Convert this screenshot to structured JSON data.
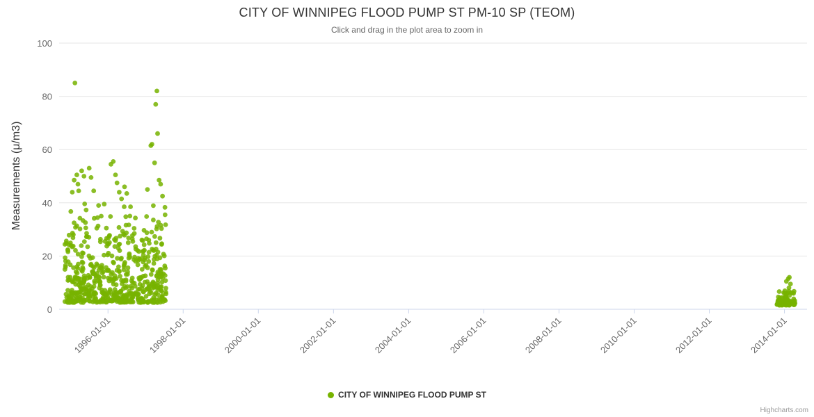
{
  "page": {
    "credits": "Highcharts.com"
  },
  "chart_data": {
    "type": "scatter",
    "title": "CITY OF WINNIPEG FLOOD PUMP ST PM-10 SP (TEOM)",
    "subtitle": "Click and drag in the plot area to zoom in",
    "xlabel": "",
    "ylabel": "Measurements (μ/m3)",
    "ylim": [
      0,
      100
    ],
    "y_ticks": [
      0,
      20,
      40,
      60,
      80,
      100
    ],
    "x_tick_years": [
      1996,
      1998,
      2000,
      2002,
      2004,
      2006,
      2008,
      2010,
      2012,
      2014
    ],
    "x_tick_labels": [
      "1996-01-01",
      "1998-01-01",
      "2000-01-01",
      "2002-01-01",
      "2004-01-01",
      "2006-01-01",
      "2008-01-01",
      "2010-01-01",
      "2012-01-01",
      "2014-01-01"
    ],
    "xlim_years": [
      1994.7,
      2014.6
    ],
    "grid": "horizontal",
    "legend_position": "bottom-center",
    "colors": {
      "accent_green": "#77b300",
      "grid_line": "#e6e6e6",
      "axis_line": "#ccd6eb",
      "tick_text": "#666666"
    },
    "series": [
      {
        "name": "CITY OF WINNIPEG FLOOD PUMP ST",
        "color": "#77b300",
        "outlier_points": [
          [
            1995.12,
            85
          ],
          [
            1995.05,
            44
          ],
          [
            1995.1,
            48.5
          ],
          [
            1995.17,
            50.5
          ],
          [
            1995.2,
            47
          ],
          [
            1995.22,
            44.5
          ],
          [
            1995.3,
            52
          ],
          [
            1995.36,
            50
          ],
          [
            1995.5,
            53
          ],
          [
            1995.55,
            49.5
          ],
          [
            1995.62,
            44.5
          ],
          [
            1995.75,
            39
          ],
          [
            1995.9,
            39.5
          ],
          [
            1996.08,
            54.5
          ],
          [
            1996.14,
            55.5
          ],
          [
            1996.2,
            50.5
          ],
          [
            1996.24,
            47.5
          ],
          [
            1996.3,
            44
          ],
          [
            1996.36,
            41.5
          ],
          [
            1996.44,
            46
          ],
          [
            1996.5,
            43.5
          ],
          [
            1996.6,
            38.5
          ],
          [
            1997.05,
            45
          ],
          [
            1997.14,
            61.5
          ],
          [
            1997.17,
            62
          ],
          [
            1997.24,
            55
          ],
          [
            1997.27,
            77
          ],
          [
            1997.3,
            82
          ],
          [
            1997.32,
            66
          ],
          [
            1997.36,
            48.5
          ],
          [
            1997.4,
            47
          ],
          [
            1997.45,
            42.5
          ],
          [
            1997.52,
            35.5
          ],
          [
            2014.05,
            10.5
          ],
          [
            2014.1,
            11.5
          ],
          [
            2014.13,
            12
          ],
          [
            2014.16,
            9.5
          ]
        ],
        "clusters": [
          {
            "x_range": [
              1994.85,
              1997.55
            ],
            "y_range": [
              2.5,
              42
            ],
            "count": 620,
            "distribution": "bottom-weighted"
          },
          {
            "x_range": [
              2013.8,
              2014.28
            ],
            "y_range": [
              1.5,
              8.5
            ],
            "count": 78,
            "distribution": "bottom-weighted"
          }
        ]
      }
    ]
  }
}
